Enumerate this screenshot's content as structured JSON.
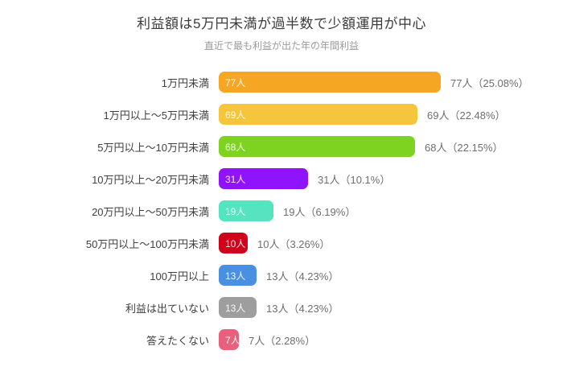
{
  "chart_data": {
    "type": "bar",
    "orientation": "horizontal",
    "title": "利益額は5万円未満が過半数で少額運用が中心",
    "subtitle": "直近で最も利益が出た年の年間利益",
    "unit": "人",
    "grid": false,
    "legend": false,
    "xlim": [
      0,
      80
    ],
    "categories": [
      "1万円未満",
      "1万円以上〜5万円未満",
      "5万円以上〜10万円未満",
      "10万円以上〜20万円未満",
      "20万円以上〜50万円未満",
      "50万円以上〜100万円未満",
      "100万円以上",
      "利益は出ていない",
      "答えたくない"
    ],
    "values": [
      77,
      69,
      68,
      31,
      19,
      10,
      13,
      13,
      7
    ],
    "percents": [
      25.08,
      22.48,
      22.15,
      10.1,
      6.19,
      3.26,
      4.23,
      4.23,
      2.28
    ],
    "bar_value_labels": [
      "77人",
      "69人",
      "68人",
      "31人",
      "19人",
      "10人",
      "13人",
      "13人",
      "7人"
    ],
    "value_annotations": [
      "77人（25.08%）",
      "69人（22.48%）",
      "68人（22.15%）",
      "31人（10.1%）",
      "19人（6.19%）",
      "10人（3.26%）",
      "13人（4.23%）",
      "13人（4.23%）",
      "7人（2.28%）"
    ],
    "colors": [
      "#F5A623",
      "#F5C53C",
      "#7ED321",
      "#9013FE",
      "#55E3C0",
      "#D0021B",
      "#4A90E2",
      "#9E9E9E",
      "#E8617C"
    ]
  }
}
